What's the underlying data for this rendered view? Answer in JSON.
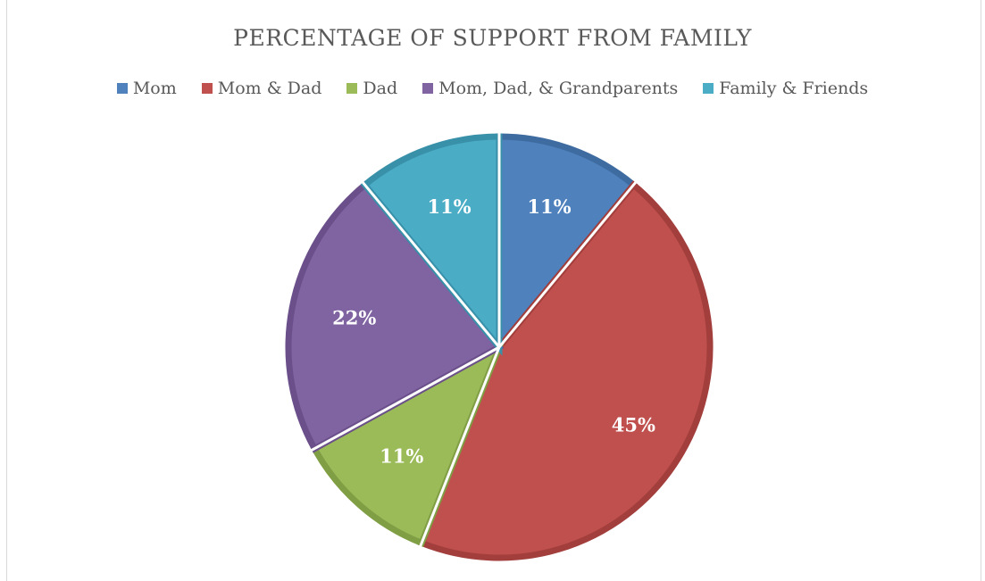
{
  "chart_data": {
    "type": "pie",
    "title": "PERCENTAGE OF SUPPORT FROM FAMILY",
    "legend_position": "top",
    "slices": [
      {
        "name": "Mom",
        "value": 11,
        "label": "11%",
        "color": "#4f81bd",
        "edge": "#3e6ba0"
      },
      {
        "name": "Mom & Dad",
        "value": 45,
        "label": "45%",
        "color": "#c0504d",
        "edge": "#a23e3c"
      },
      {
        "name": "Dad",
        "value": 11,
        "label": "11%",
        "color": "#9bbb59",
        "edge": "#809e44"
      },
      {
        "name": "Mom, Dad, & Grandparents",
        "value": 22,
        "label": "22%",
        "color": "#8064a2",
        "edge": "#6a4f8a"
      },
      {
        "name": "Family & Friends",
        "value": 11,
        "label": "11%",
        "color": "#4bacc6",
        "edge": "#3891a9"
      }
    ]
  }
}
